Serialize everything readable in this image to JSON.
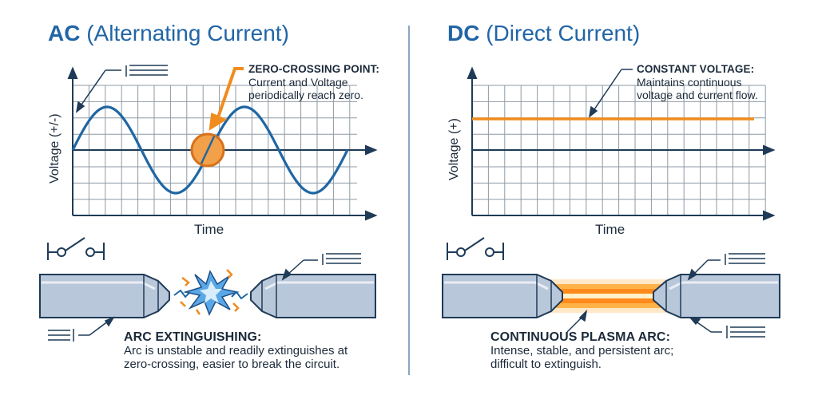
{
  "ac": {
    "title_bold": "AC",
    "title_rest": "(Alternating Current)",
    "y_axis_label": "Voltage (+/-)",
    "x_axis_label": "Time",
    "zero_crossing": {
      "heading": "ZERO-CROSSING POINT:",
      "line1": "Current and Voltage",
      "line2": "periodically reach zero."
    },
    "arc": {
      "heading": "ARC EXTINGUISHING:",
      "line1": "Arc is unstable and readily extinguishes at",
      "line2": "zero-crossing, easier to break the circuit."
    }
  },
  "dc": {
    "title_bold": "DC",
    "title_rest": "(Direct Current)",
    "y_axis_label": "Voltage (+)",
    "x_axis_label": "Time",
    "constant": {
      "heading": "CONSTANT VOLTAGE:",
      "line1": "Maintains continuous",
      "line2": "voltage and current flow."
    },
    "arc": {
      "heading": "CONTINUOUS PLASMA ARC:",
      "line1": "Intense, stable, and persistent arc;",
      "line2": "difficult to extinguish."
    }
  },
  "colors": {
    "title_blue": "#2165a6",
    "wave_blue": "#1f66a3",
    "accent_orange": "#f08c1e",
    "grid": "#8e9aa6",
    "axis": "#1f3b57",
    "electrode": "#b9c7da"
  },
  "icons": [
    "switch-icon",
    "spark-icon",
    "plasma-arc-icon",
    "callout-arrow-icon"
  ]
}
